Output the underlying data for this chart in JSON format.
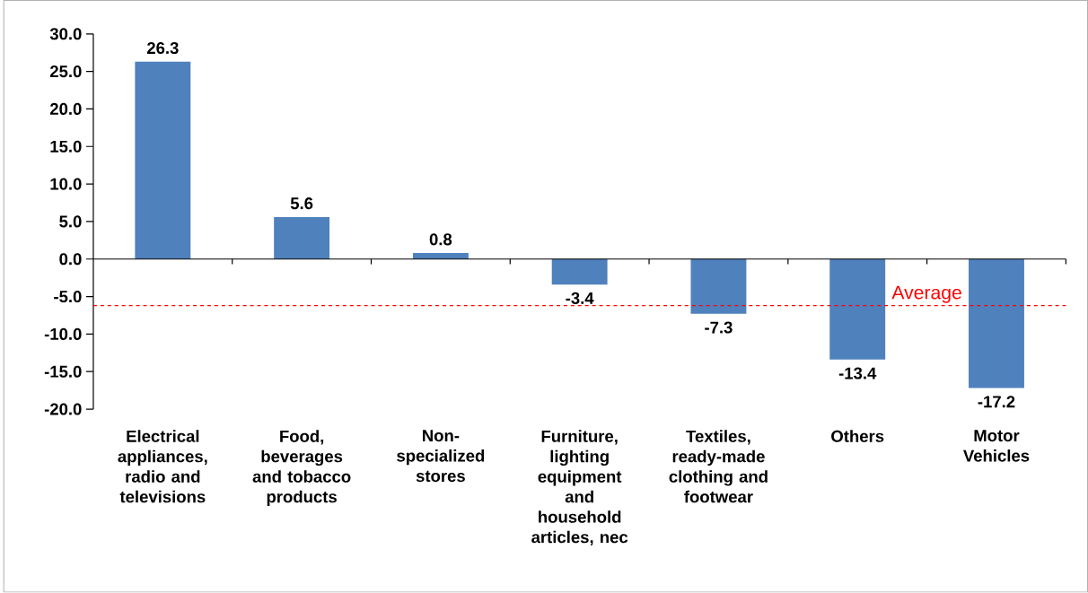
{
  "chart_data": {
    "type": "bar",
    "categories": [
      "Electrical appliances, radio and televisions",
      "Food, beverages and tobacco products",
      "Non-specialized stores",
      "Furniture, lighting equipment and household articles, nec",
      "Textiles, ready-made clothing and footwear",
      "Others",
      "Motor Vehicles"
    ],
    "values": [
      26.3,
      5.6,
      0.8,
      -3.4,
      -7.3,
      -13.4,
      -17.2
    ],
    "color": "#4f81bd",
    "ylim": [
      -20,
      30
    ],
    "yticks": [
      {
        "value": -20,
        "label": "-20.0"
      },
      {
        "value": -15,
        "label": "-15.0"
      },
      {
        "value": -10,
        "label": "-10.0"
      },
      {
        "value": -5,
        "label": "-5.0"
      },
      {
        "value": 0,
        "label": "0.0"
      },
      {
        "value": 5,
        "label": "5.0"
      },
      {
        "value": 10,
        "label": "10.0"
      },
      {
        "value": 15,
        "label": "15.0"
      },
      {
        "value": 20,
        "label": "20.0"
      },
      {
        "value": 25,
        "label": "25.0"
      },
      {
        "value": 30,
        "label": "30.0"
      }
    ],
    "data_labels": true,
    "ref_lines": [
      {
        "axis": "y",
        "value": -6.2,
        "label": "Average",
        "color": "#ff0000",
        "line_style": "dashed"
      }
    ]
  }
}
